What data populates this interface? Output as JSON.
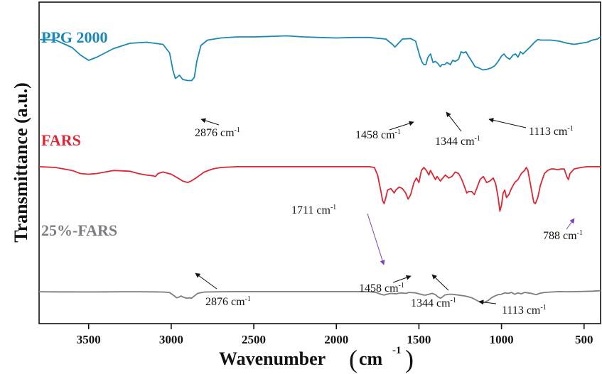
{
  "chart_data": {
    "type": "line",
    "xlabel": "Wavenumber",
    "xlabel_unit": "cm",
    "xlabel_unit_exp": "-1",
    "ylabel": "Transmittance (a.u.)",
    "x_reversed": true,
    "xlim": [
      3800,
      400
    ],
    "x_ticks": [
      3500,
      3000,
      2500,
      2000,
      1500,
      1000,
      500
    ],
    "x_tick_labels": [
      "3500",
      "3000",
      "2500",
      "2000",
      "1500",
      "1000",
      "500"
    ],
    "grid": false,
    "series": [
      {
        "name": "PPG 2000",
        "color": "#1b87b5",
        "points": [
          [
            3800,
            0.935
          ],
          [
            3700,
            0.93
          ],
          [
            3600,
            0.86
          ],
          [
            3550,
            0.79
          ],
          [
            3500,
            0.74
          ],
          [
            3450,
            0.77
          ],
          [
            3350,
            0.85
          ],
          [
            3250,
            0.9
          ],
          [
            3150,
            0.91
          ],
          [
            3050,
            0.89
          ],
          [
            3010,
            0.81
          ],
          [
            2990,
            0.65
          ],
          [
            2975,
            0.57
          ],
          [
            2965,
            0.58
          ],
          [
            2950,
            0.6
          ],
          [
            2930,
            0.56
          ],
          [
            2900,
            0.55
          ],
          [
            2876,
            0.55
          ],
          [
            2860,
            0.58
          ],
          [
            2845,
            0.73
          ],
          [
            2820,
            0.88
          ],
          [
            2780,
            0.93
          ],
          [
            2700,
            0.95
          ],
          [
            2600,
            0.96
          ],
          [
            2500,
            0.96
          ],
          [
            2400,
            0.965
          ],
          [
            2300,
            0.97
          ],
          [
            2200,
            0.96
          ],
          [
            2100,
            0.955
          ],
          [
            2000,
            0.95
          ],
          [
            1900,
            0.955
          ],
          [
            1800,
            0.955
          ],
          [
            1700,
            0.94
          ],
          [
            1660,
            0.89
          ],
          [
            1645,
            0.865
          ],
          [
            1630,
            0.89
          ],
          [
            1600,
            0.94
          ],
          [
            1550,
            0.945
          ],
          [
            1520,
            0.92
          ],
          [
            1495,
            0.78
          ],
          [
            1480,
            0.72
          ],
          [
            1470,
            0.7
          ],
          [
            1458,
            0.7
          ],
          [
            1445,
            0.77
          ],
          [
            1430,
            0.8
          ],
          [
            1415,
            0.72
          ],
          [
            1400,
            0.73
          ],
          [
            1385,
            0.71
          ],
          [
            1370,
            0.68
          ],
          [
            1360,
            0.7
          ],
          [
            1344,
            0.7
          ],
          [
            1330,
            0.72
          ],
          [
            1310,
            0.7
          ],
          [
            1295,
            0.74
          ],
          [
            1280,
            0.73
          ],
          [
            1260,
            0.75
          ],
          [
            1245,
            0.82
          ],
          [
            1230,
            0.81
          ],
          [
            1215,
            0.82
          ],
          [
            1200,
            0.78
          ],
          [
            1180,
            0.73
          ],
          [
            1160,
            0.68
          ],
          [
            1140,
            0.67
          ],
          [
            1113,
            0.65
          ],
          [
            1090,
            0.655
          ],
          [
            1060,
            0.67
          ],
          [
            1040,
            0.69
          ],
          [
            1020,
            0.73
          ],
          [
            1000,
            0.78
          ],
          [
            985,
            0.8
          ],
          [
            970,
            0.77
          ],
          [
            950,
            0.75
          ],
          [
            930,
            0.79
          ],
          [
            915,
            0.8
          ],
          [
            900,
            0.77
          ],
          [
            885,
            0.82
          ],
          [
            870,
            0.8
          ],
          [
            850,
            0.83
          ],
          [
            830,
            0.86
          ],
          [
            800,
            0.91
          ],
          [
            780,
            0.935
          ],
          [
            760,
            0.93
          ],
          [
            700,
            0.93
          ],
          [
            650,
            0.92
          ],
          [
            600,
            0.9
          ],
          [
            560,
            0.89
          ],
          [
            520,
            0.9
          ],
          [
            480,
            0.91
          ],
          [
            450,
            0.93
          ],
          [
            420,
            0.94
          ],
          [
            400,
            0.96
          ]
        ]
      },
      {
        "name": "FARS",
        "color": "#dc2634",
        "points": [
          [
            3800,
            0.505
          ],
          [
            3700,
            0.5
          ],
          [
            3600,
            0.48
          ],
          [
            3550,
            0.46
          ],
          [
            3500,
            0.455
          ],
          [
            3450,
            0.46
          ],
          [
            3350,
            0.48
          ],
          [
            3250,
            0.475
          ],
          [
            3200,
            0.46
          ],
          [
            3150,
            0.45
          ],
          [
            3110,
            0.445
          ],
          [
            3095,
            0.44
          ],
          [
            3080,
            0.46
          ],
          [
            3050,
            0.47
          ],
          [
            3000,
            0.455
          ],
          [
            2960,
            0.43
          ],
          [
            2930,
            0.41
          ],
          [
            2900,
            0.4
          ],
          [
            2880,
            0.41
          ],
          [
            2850,
            0.43
          ],
          [
            2800,
            0.47
          ],
          [
            2750,
            0.49
          ],
          [
            2700,
            0.5
          ],
          [
            2600,
            0.505
          ],
          [
            2500,
            0.505
          ],
          [
            2400,
            0.505
          ],
          [
            2300,
            0.505
          ],
          [
            2200,
            0.505
          ],
          [
            2100,
            0.505
          ],
          [
            2000,
            0.505
          ],
          [
            1900,
            0.505
          ],
          [
            1800,
            0.505
          ],
          [
            1770,
            0.5
          ],
          [
            1750,
            0.45
          ],
          [
            1730,
            0.34
          ],
          [
            1720,
            0.28
          ],
          [
            1711,
            0.26
          ],
          [
            1700,
            0.3
          ],
          [
            1690,
            0.35
          ],
          [
            1670,
            0.36
          ],
          [
            1650,
            0.33
          ],
          [
            1640,
            0.35
          ],
          [
            1620,
            0.37
          ],
          [
            1600,
            0.36
          ],
          [
            1580,
            0.33
          ],
          [
            1565,
            0.29
          ],
          [
            1550,
            0.32
          ],
          [
            1530,
            0.4
          ],
          [
            1515,
            0.43
          ],
          [
            1500,
            0.4
          ],
          [
            1485,
            0.48
          ],
          [
            1470,
            0.5
          ],
          [
            1455,
            0.48
          ],
          [
            1440,
            0.45
          ],
          [
            1430,
            0.48
          ],
          [
            1410,
            0.44
          ],
          [
            1400,
            0.42
          ],
          [
            1390,
            0.44
          ],
          [
            1370,
            0.41
          ],
          [
            1355,
            0.43
          ],
          [
            1340,
            0.45
          ],
          [
            1320,
            0.43
          ],
          [
            1300,
            0.44
          ],
          [
            1280,
            0.47
          ],
          [
            1260,
            0.46
          ],
          [
            1240,
            0.42
          ],
          [
            1220,
            0.36
          ],
          [
            1210,
            0.33
          ],
          [
            1200,
            0.34
          ],
          [
            1180,
            0.34
          ],
          [
            1165,
            0.32
          ],
          [
            1150,
            0.36
          ],
          [
            1130,
            0.42
          ],
          [
            1110,
            0.44
          ],
          [
            1090,
            0.4
          ],
          [
            1070,
            0.41
          ],
          [
            1050,
            0.43
          ],
          [
            1035,
            0.39
          ],
          [
            1020,
            0.3
          ],
          [
            1010,
            0.21
          ],
          [
            1000,
            0.25
          ],
          [
            990,
            0.33
          ],
          [
            980,
            0.35
          ],
          [
            970,
            0.3
          ],
          [
            955,
            0.32
          ],
          [
            940,
            0.36
          ],
          [
            920,
            0.4
          ],
          [
            900,
            0.42
          ],
          [
            880,
            0.46
          ],
          [
            860,
            0.48
          ],
          [
            850,
            0.5
          ],
          [
            840,
            0.48
          ],
          [
            830,
            0.42
          ],
          [
            815,
            0.33
          ],
          [
            805,
            0.27
          ],
          [
            795,
            0.26
          ],
          [
            780,
            0.3
          ],
          [
            765,
            0.38
          ],
          [
            740,
            0.46
          ],
          [
            720,
            0.48
          ],
          [
            700,
            0.49
          ],
          [
            680,
            0.49
          ],
          [
            660,
            0.485
          ],
          [
            640,
            0.49
          ],
          [
            620,
            0.49
          ],
          [
            605,
            0.44
          ],
          [
            595,
            0.42
          ],
          [
            585,
            0.46
          ],
          [
            560,
            0.49
          ],
          [
            520,
            0.5
          ],
          [
            480,
            0.505
          ],
          [
            440,
            0.505
          ],
          [
            400,
            0.505
          ]
        ]
      },
      {
        "name": "25%-FARS",
        "color": "#7e7b83",
        "points": [
          [
            3800,
            0.128
          ],
          [
            3700,
            0.127
          ],
          [
            3600,
            0.127
          ],
          [
            3500,
            0.126
          ],
          [
            3400,
            0.127
          ],
          [
            3300,
            0.128
          ],
          [
            3200,
            0.128
          ],
          [
            3100,
            0.127
          ],
          [
            3050,
            0.125
          ],
          [
            3010,
            0.12
          ],
          [
            2995,
            0.1
          ],
          [
            2980,
            0.08
          ],
          [
            2968,
            0.06
          ],
          [
            2955,
            0.065
          ],
          [
            2940,
            0.08
          ],
          [
            2925,
            0.065
          ],
          [
            2905,
            0.055
          ],
          [
            2890,
            0.06
          ],
          [
            2876,
            0.055
          ],
          [
            2860,
            0.08
          ],
          [
            2840,
            0.11
          ],
          [
            2800,
            0.125
          ],
          [
            2700,
            0.128
          ],
          [
            2600,
            0.13
          ],
          [
            2500,
            0.13
          ],
          [
            2400,
            0.13
          ],
          [
            2300,
            0.13
          ],
          [
            2200,
            0.13
          ],
          [
            2100,
            0.13
          ],
          [
            2000,
            0.13
          ],
          [
            1900,
            0.13
          ],
          [
            1800,
            0.128
          ],
          [
            1760,
            0.12
          ],
          [
            1730,
            0.1
          ],
          [
            1711,
            0.09
          ],
          [
            1695,
            0.1
          ],
          [
            1670,
            0.11
          ],
          [
            1640,
            0.105
          ],
          [
            1610,
            0.115
          ],
          [
            1580,
            0.11
          ],
          [
            1560,
            0.12
          ],
          [
            1520,
            0.115
          ],
          [
            1490,
            0.1
          ],
          [
            1470,
            0.09
          ],
          [
            1458,
            0.09
          ],
          [
            1440,
            0.1
          ],
          [
            1420,
            0.11
          ],
          [
            1400,
            0.095
          ],
          [
            1385,
            0.07
          ],
          [
            1370,
            0.055
          ],
          [
            1360,
            0.065
          ],
          [
            1344,
            0.09
          ],
          [
            1320,
            0.1
          ],
          [
            1300,
            0.1
          ],
          [
            1280,
            0.095
          ],
          [
            1260,
            0.09
          ],
          [
            1240,
            0.085
          ],
          [
            1220,
            0.08
          ],
          [
            1200,
            0.07
          ],
          [
            1180,
            0.06
          ],
          [
            1160,
            0.04
          ],
          [
            1140,
            0.02
          ],
          [
            1125,
            0.005
          ],
          [
            1113,
            0.0
          ],
          [
            1100,
            0.01
          ],
          [
            1080,
            0.03
          ],
          [
            1060,
            0.06
          ],
          [
            1040,
            0.08
          ],
          [
            1020,
            0.095
          ],
          [
            1000,
            0.1
          ],
          [
            980,
            0.115
          ],
          [
            960,
            0.11
          ],
          [
            940,
            0.12
          ],
          [
            920,
            0.1
          ],
          [
            900,
            0.115
          ],
          [
            880,
            0.105
          ],
          [
            860,
            0.12
          ],
          [
            840,
            0.115
          ],
          [
            820,
            0.11
          ],
          [
            800,
            0.1
          ],
          [
            788,
            0.095
          ],
          [
            770,
            0.11
          ],
          [
            740,
            0.12
          ],
          [
            700,
            0.125
          ],
          [
            650,
            0.13
          ],
          [
            600,
            0.128
          ],
          [
            550,
            0.13
          ],
          [
            500,
            0.132
          ],
          [
            450,
            0.135
          ],
          [
            400,
            0.14
          ]
        ]
      }
    ],
    "annotations": [
      {
        "text": "2876 cm",
        "exp": "-1",
        "color": "#111111"
      },
      {
        "text": "1458 cm",
        "exp": "-1",
        "color": "#111111"
      },
      {
        "text": "1344 cm",
        "exp": "-1",
        "color": "#111111"
      },
      {
        "text": "1113 cm",
        "exp": "-1",
        "color": "#111111"
      },
      {
        "text": "1711 cm",
        "exp": "-1",
        "color": "#7e3fb0"
      },
      {
        "text": "788 cm",
        "exp": "-1",
        "color": "#7e3fb0"
      },
      {
        "text": "2876 cm",
        "exp": "-1",
        "color": "#111111"
      },
      {
        "text": "1458 cm",
        "exp": "-1",
        "color": "#111111"
      },
      {
        "text": "1344 cm",
        "exp": "-1",
        "color": "#111111"
      },
      {
        "text": "1113 cm",
        "exp": "-1",
        "color": "#111111"
      }
    ]
  }
}
